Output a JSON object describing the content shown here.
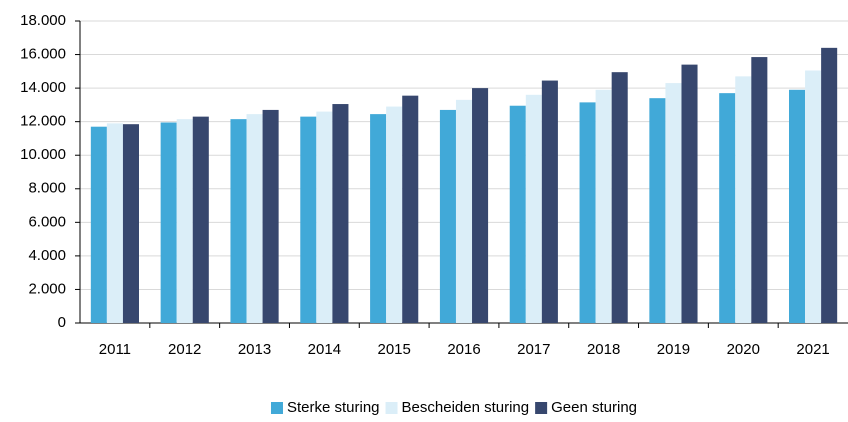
{
  "chart_data": {
    "type": "bar",
    "categories": [
      "2011",
      "2012",
      "2013",
      "2014",
      "2015",
      "2016",
      "2017",
      "2018",
      "2019",
      "2020",
      "2021"
    ],
    "series": [
      {
        "name": "Sterke sturing",
        "color": "#41a9d8",
        "values": [
          11700,
          11950,
          12150,
          12300,
          12450,
          12700,
          12950,
          13150,
          13400,
          13700,
          13900
        ]
      },
      {
        "name": "Bescheiden sturing",
        "color": "#dbeef8",
        "values": [
          11900,
          12150,
          12450,
          12600,
          12900,
          13300,
          13600,
          13900,
          14300,
          14700,
          15050
        ]
      },
      {
        "name": "Geen sturing",
        "color": "#37476e",
        "values": [
          11850,
          12300,
          12700,
          13050,
          13550,
          14000,
          14450,
          14950,
          15400,
          15850,
          16400
        ]
      }
    ],
    "ylim": [
      0,
      18000
    ],
    "yticks": [
      0,
      {
        "value": 2000,
        "label": "2.000"
      },
      {
        "value": 4000,
        "label": "4.000"
      },
      {
        "value": 6000,
        "label": "6.000"
      },
      {
        "value": 8000,
        "label": "8.000"
      },
      {
        "value": 10000,
        "label": "10.000"
      },
      {
        "value": 12000,
        "label": "12.000"
      },
      {
        "value": 14000,
        "label": "14.000"
      },
      {
        "value": 16000,
        "label": "16.000"
      },
      {
        "value": 18000,
        "label": "18.000"
      }
    ],
    "grid": true,
    "legend": "bottom"
  }
}
